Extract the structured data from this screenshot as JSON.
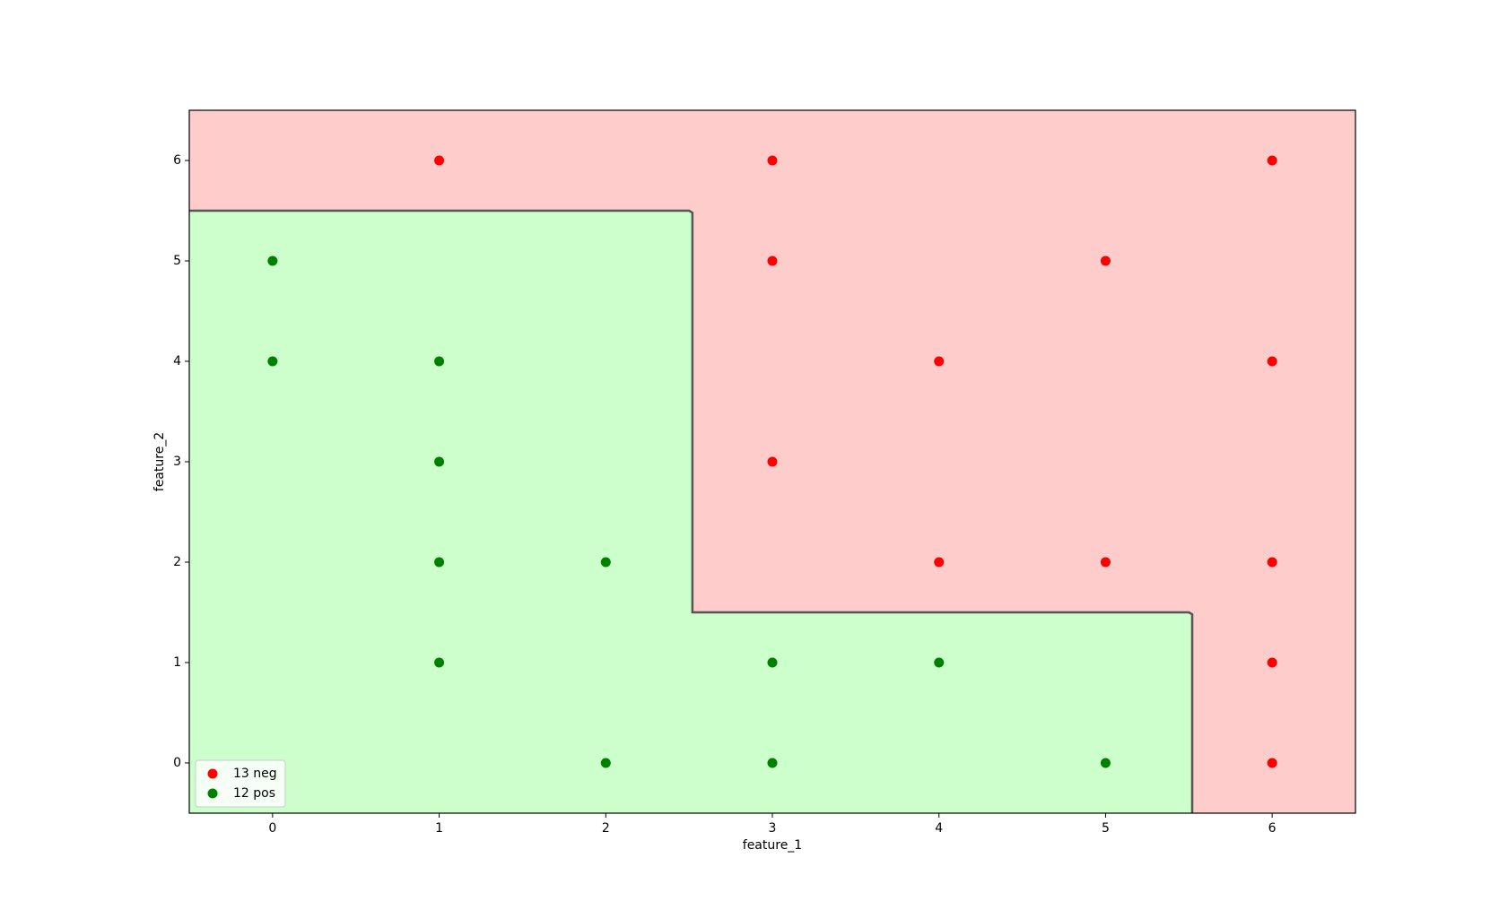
{
  "chart_data": {
    "type": "scatter",
    "xlabel": "feature_1",
    "ylabel": "feature_2",
    "xlim": [
      -0.5,
      6.5
    ],
    "ylim": [
      -0.5,
      6.5
    ],
    "xticks": [
      0,
      1,
      2,
      3,
      4,
      5,
      6
    ],
    "yticks": [
      0,
      1,
      2,
      3,
      4,
      5,
      6
    ],
    "legend": "lower left",
    "region_colors": {
      "neg": "#ffcccc",
      "pos": "#ccffcc"
    },
    "boundary": {
      "color": "#555555",
      "x": [
        -0.5,
        2.5,
        2.52,
        2.52,
        5.5,
        5.52,
        5.52
      ],
      "y": [
        5.5,
        5.5,
        5.48,
        1.5,
        1.5,
        1.48,
        -0.5
      ]
    },
    "series": [
      {
        "name": "13 neg",
        "color": "#ff0000",
        "x": [
          1,
          3,
          6,
          3,
          5,
          4,
          6,
          3,
          4,
          5,
          6,
          6,
          6
        ],
        "values": [
          6,
          6,
          6,
          5,
          5,
          4,
          4,
          3,
          2,
          2,
          2,
          1,
          0
        ]
      },
      {
        "name": "12 pos",
        "color": "#008000",
        "x": [
          0,
          0,
          1,
          1,
          1,
          2,
          1,
          3,
          4,
          2,
          3,
          5
        ],
        "values": [
          5,
          4,
          4,
          3,
          2,
          2,
          1,
          1,
          1,
          0,
          0,
          0
        ]
      }
    ]
  }
}
